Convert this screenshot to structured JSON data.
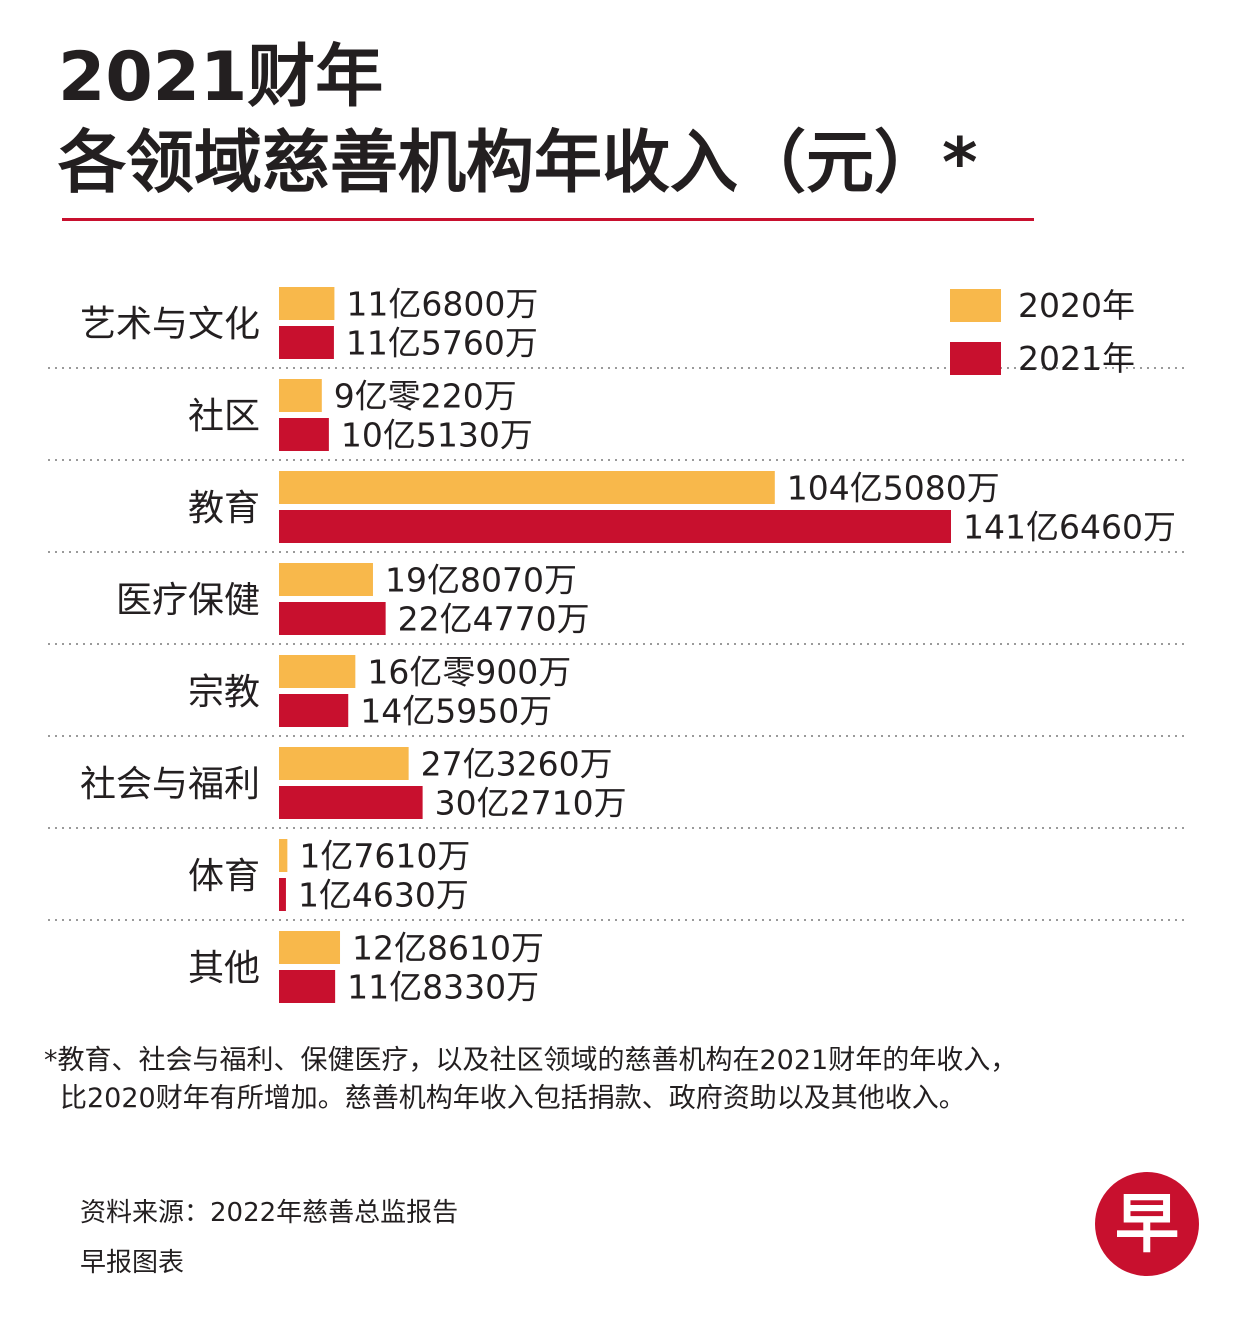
{
  "title_line1": "2021财年",
  "title_line2": "各领域慈善机构年收入（元）*",
  "chart_data": {
    "type": "bar",
    "orientation": "horizontal",
    "unit": "元",
    "categories": [
      "艺术与文化",
      "社区",
      "教育",
      "医疗保健",
      "宗教",
      "社会与福利",
      "体育",
      "其他"
    ],
    "series": [
      {
        "name": "2020年",
        "color": "#f8b84b",
        "values": [
          1168000000,
          902200000,
          10450800000,
          1980700000,
          1609000000,
          2732600000,
          176100000,
          1286100000
        ],
        "labels": [
          "11亿6800万",
          "9亿零220万",
          "104亿5080万",
          "19亿8070万",
          "16亿零900万",
          "27亿3260万",
          "1亿7610万",
          "12亿8610万"
        ]
      },
      {
        "name": "2021年",
        "color": "#c8102e",
        "values": [
          1157600000,
          1051300000,
          14164600000,
          2247700000,
          1459500000,
          3027100000,
          146300000,
          1183300000
        ],
        "labels": [
          "11亿5760万",
          "10亿5130万",
          "141亿6460万",
          "22亿4770万",
          "14亿5950万",
          "30亿2710万",
          "1亿4630万",
          "11亿8330万"
        ]
      }
    ],
    "legend": {
      "position": "top-right",
      "entries": [
        "2020年",
        "2021年"
      ]
    }
  },
  "footnote_line1": "*教育、社会与福利、保健医疗，以及社区领域的慈善机构在2021财年的年收入，",
  "footnote_line2": "比2020财年有所增加。慈善机构年收入包括捐款、政府资助以及其他收入。",
  "source": "资料来源：2022年慈善总监报告",
  "credit": "早报图表",
  "logo_char": "早",
  "colors": {
    "accent_red": "#c8102e",
    "accent_orange": "#f8b84b",
    "text": "#231f20"
  }
}
